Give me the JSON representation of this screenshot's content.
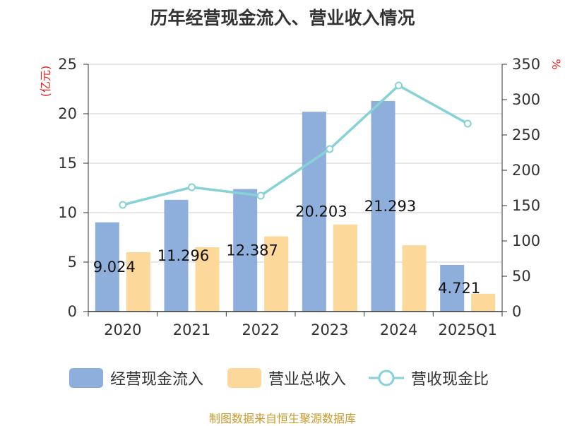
{
  "chart_data": {
    "type": "bar",
    "title": "历年经营现金流入、营业收入情况",
    "categories": [
      "2020",
      "2021",
      "2022",
      "2023",
      "2024",
      "2025Q1"
    ],
    "y_left": {
      "label": "(亿元)",
      "ticks": [
        "0",
        "5",
        "10",
        "15",
        "20",
        "25"
      ],
      "range": [
        0,
        25
      ]
    },
    "y_right": {
      "label": "%",
      "ticks": [
        "0",
        "50",
        "100",
        "150",
        "200",
        "250",
        "300",
        "350"
      ],
      "range": [
        0,
        350
      ]
    },
    "series": [
      {
        "name": "经营现金流入",
        "kind": "bar",
        "axis": "left",
        "color": "#8eaedb",
        "values": [
          9.024,
          11.296,
          12.387,
          20.203,
          21.293,
          4.721
        ],
        "labels": [
          "9.024",
          "11.296",
          "12.387",
          "20.203",
          "21.293",
          "4.721"
        ]
      },
      {
        "name": "营业总收入",
        "kind": "bar",
        "axis": "left",
        "color": "#fdd89b",
        "values": [
          6.0,
          6.5,
          7.6,
          8.8,
          6.7,
          1.8
        ]
      },
      {
        "name": "营收现金比",
        "kind": "line",
        "axis": "right",
        "color": "#86d2d6",
        "values": [
          151,
          176,
          164,
          230,
          320,
          266
        ]
      }
    ],
    "grid": true,
    "legend_position": "bottom"
  },
  "source_text": "制图数据来自恒生聚源数据库"
}
